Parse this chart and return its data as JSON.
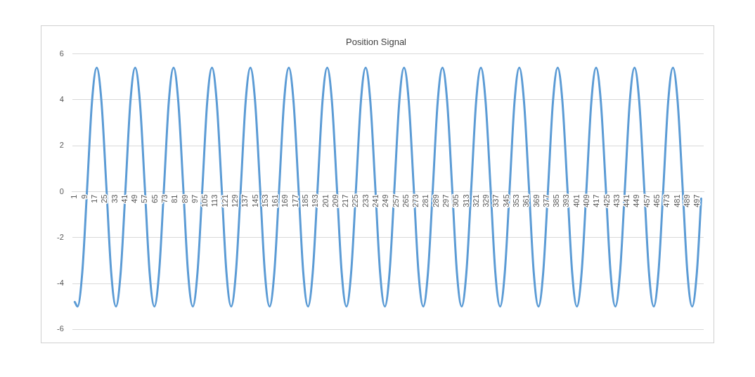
{
  "chart_data": {
    "type": "line",
    "title": "Position Signal",
    "color": "#5b9bd5",
    "grid": "y",
    "xlim": [
      -1,
      502
    ],
    "ylim": [
      -6,
      6
    ],
    "xticks": [
      1,
      9,
      17,
      25,
      33,
      41,
      49,
      57,
      65,
      73,
      81,
      89,
      97,
      105,
      113,
      121,
      129,
      137,
      145,
      153,
      161,
      169,
      177,
      185,
      193,
      201,
      209,
      217,
      225,
      233,
      241,
      249,
      257,
      265,
      273,
      281,
      289,
      297,
      305,
      313,
      321,
      329,
      337,
      345,
      353,
      361,
      369,
      377,
      385,
      393,
      401,
      409,
      417,
      425,
      433,
      441,
      449,
      457,
      465,
      473,
      481,
      489,
      497
    ],
    "yticks": [
      -6,
      -4,
      -2,
      0,
      2,
      4,
      6
    ],
    "x": [
      1,
      3.2,
      7.0,
      10.9,
      14.7,
      18.5,
      22.3,
      26.2,
      30.0,
      33.8,
      37.6,
      41.5,
      45.3,
      49.1,
      52.9,
      56.8,
      60.6,
      64.4,
      68.2,
      72.1,
      75.9,
      79.7,
      83.5,
      87.4,
      91.2,
      95.0,
      98.8,
      102.7,
      106.5,
      110.3,
      114.1,
      118.0,
      121.8,
      125.6,
      129.4,
      133.3,
      137.1,
      140.9,
      144.7,
      148.6,
      152.4,
      156.2,
      160.0,
      163.9,
      167.7,
      171.5,
      175.3,
      179.2,
      183.0,
      186.8,
      190.6,
      194.5,
      198.3,
      202.1,
      205.9,
      209.8,
      213.6,
      217.4,
      221.2,
      225.1,
      228.9,
      232.7,
      236.5,
      240.4,
      244.2,
      248.0,
      251.8,
      255.7,
      259.5,
      263.3,
      267.1,
      271.0,
      274.8,
      278.6,
      282.4,
      286.3,
      290.1,
      293.9,
      297.7,
      301.6,
      305.4,
      309.2,
      313.0,
      316.9,
      320.7,
      324.5,
      328.3,
      332.2,
      336.0,
      339.8,
      343.6,
      347.5,
      351.3,
      355.1,
      358.9,
      362.8,
      366.6,
      370.4,
      374.2,
      378.1,
      381.9,
      385.7,
      389.5,
      393.4,
      397.2,
      401.0,
      404.8,
      408.7,
      412.5,
      416.3,
      420.1,
      424.0,
      427.8,
      431.6,
      435.4,
      439.3,
      443.1,
      446.9,
      450.7,
      454.6,
      458.4,
      462.2,
      466.0,
      469.9,
      473.7,
      477.5,
      481.3,
      485.2,
      489.0,
      492.8,
      496.6,
      500
    ],
    "values": [
      -4.8,
      -5.0,
      -3.5,
      0.2,
      3.9,
      5.4,
      3.9,
      0.2,
      -3.5,
      -5.0,
      -3.5,
      0.2,
      3.9,
      5.4,
      3.9,
      0.2,
      -3.5,
      -5.0,
      -3.5,
      0.2,
      3.9,
      5.4,
      3.9,
      0.2,
      -3.5,
      -5.0,
      -3.5,
      0.2,
      3.9,
      5.4,
      3.9,
      0.2,
      -3.5,
      -5.0,
      -3.5,
      0.2,
      3.9,
      5.4,
      3.9,
      0.2,
      -3.5,
      -5.0,
      -3.5,
      0.2,
      3.9,
      5.4,
      3.9,
      0.2,
      -3.5,
      -5.0,
      -3.5,
      0.2,
      3.9,
      5.4,
      3.9,
      0.2,
      -3.5,
      -5.0,
      -3.5,
      0.2,
      3.9,
      5.4,
      3.9,
      0.2,
      -3.5,
      -5.0,
      -3.5,
      0.2,
      3.9,
      5.4,
      3.9,
      0.2,
      -3.5,
      -5.0,
      -3.5,
      0.2,
      3.9,
      5.4,
      3.9,
      0.2,
      -3.5,
      -5.0,
      -3.5,
      0.2,
      3.9,
      5.4,
      3.9,
      0.2,
      -3.5,
      -5.0,
      -3.5,
      0.2,
      3.9,
      5.4,
      3.9,
      0.2,
      -3.5,
      -5.0,
      -3.5,
      0.2,
      3.9,
      5.4,
      3.9,
      0.2,
      -3.5,
      -5.0,
      -3.5,
      0.2,
      3.9,
      5.4,
      3.9,
      0.2,
      -3.5,
      -5.0,
      -3.5,
      0.2,
      3.9,
      5.4,
      3.9,
      0.2,
      -3.5,
      -5.0,
      -3.5,
      0.2,
      3.9,
      5.4,
      3.9,
      0.2,
      -3.5,
      -5.0,
      -3.5,
      -0.3
    ]
  }
}
